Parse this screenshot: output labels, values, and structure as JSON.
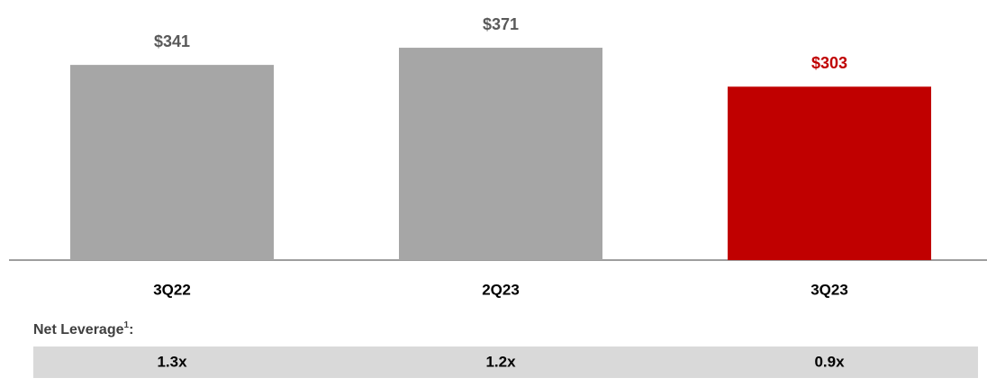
{
  "chart_data": {
    "type": "bar",
    "categories": [
      "3Q22",
      "2Q23",
      "3Q23"
    ],
    "values": [
      341,
      371,
      303
    ],
    "value_labels": [
      "$341",
      "$371",
      "$303"
    ],
    "colors": [
      "#a6a6a6",
      "#a6a6a6",
      "#c00000"
    ],
    "label_colors": [
      "#595959",
      "#595959",
      "#c00000"
    ]
  },
  "leverage": {
    "label": "Net Leverage",
    "footnote": "1",
    "suffix": ":",
    "values": [
      "1.3x",
      "1.2x",
      "0.9x"
    ]
  }
}
